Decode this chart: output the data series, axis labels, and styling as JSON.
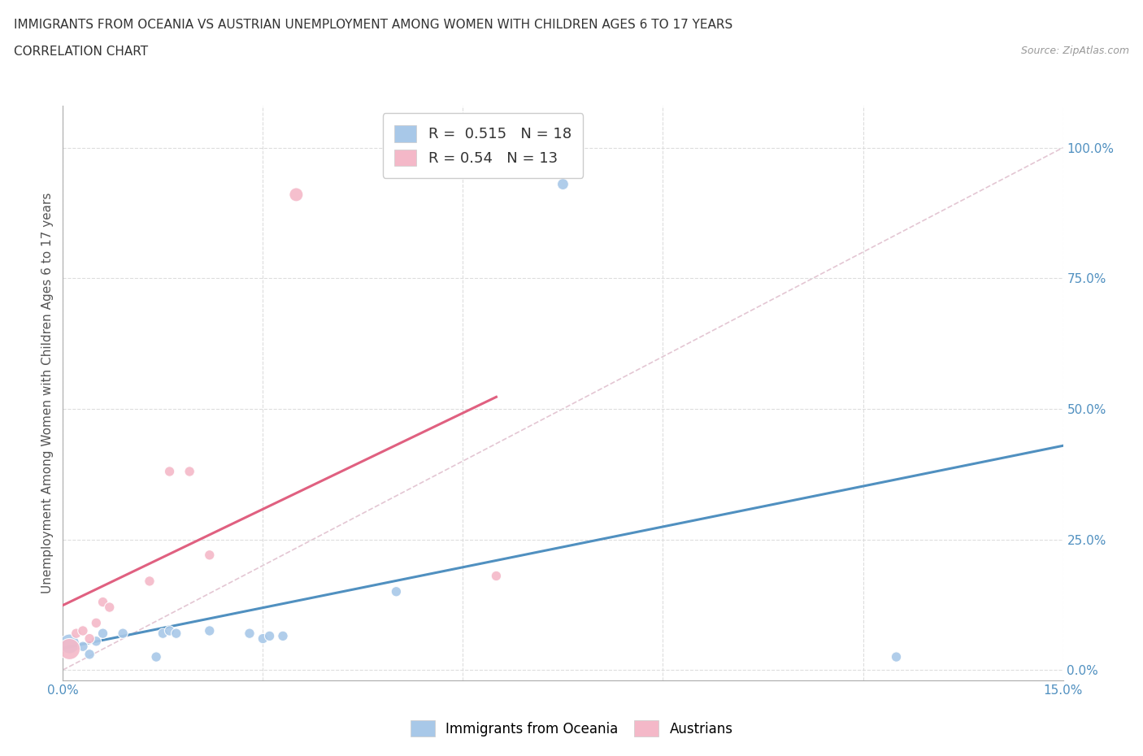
{
  "title_line1": "IMMIGRANTS FROM OCEANIA VS AUSTRIAN UNEMPLOYMENT AMONG WOMEN WITH CHILDREN AGES 6 TO 17 YEARS",
  "title_line2": "CORRELATION CHART",
  "source": "Source: ZipAtlas.com",
  "ylabel": "Unemployment Among Women with Children Ages 6 to 17 years",
  "xlim": [
    0,
    0.15
  ],
  "ylim": [
    -0.02,
    1.08
  ],
  "blue_color": "#A8C8E8",
  "pink_color": "#F4B8C8",
  "blue_line_color": "#5090C0",
  "pink_line_color": "#E06080",
  "ref_line_color": "#DDB8C8",
  "grid_color": "#DDDDDD",
  "background_color": "#FFFFFF",
  "R_blue": 0.515,
  "N_blue": 18,
  "R_pink": 0.54,
  "N_pink": 13,
  "series1_label": "Immigrants from Oceania",
  "series2_label": "Austrians",
  "blue_x": [
    0.001,
    0.003,
    0.004,
    0.005,
    0.006,
    0.009,
    0.014,
    0.015,
    0.016,
    0.017,
    0.022,
    0.028,
    0.03,
    0.031,
    0.033,
    0.05,
    0.075,
    0.125
  ],
  "blue_y": [
    0.05,
    0.045,
    0.03,
    0.055,
    0.07,
    0.07,
    0.025,
    0.07,
    0.075,
    0.07,
    0.075,
    0.07,
    0.06,
    0.065,
    0.065,
    0.15,
    0.93,
    0.025
  ],
  "pink_x": [
    0.001,
    0.002,
    0.003,
    0.004,
    0.005,
    0.006,
    0.007,
    0.013,
    0.016,
    0.019,
    0.022,
    0.035,
    0.065
  ],
  "pink_y": [
    0.04,
    0.07,
    0.075,
    0.06,
    0.09,
    0.13,
    0.12,
    0.17,
    0.38,
    0.38,
    0.22,
    0.91,
    0.18
  ],
  "blue_sizes": [
    300,
    80,
    80,
    80,
    80,
    80,
    80,
    80,
    80,
    80,
    80,
    80,
    80,
    80,
    80,
    80,
    100,
    80
  ],
  "pink_sizes": [
    350,
    80,
    80,
    80,
    80,
    80,
    80,
    80,
    80,
    80,
    80,
    150,
    80
  ]
}
